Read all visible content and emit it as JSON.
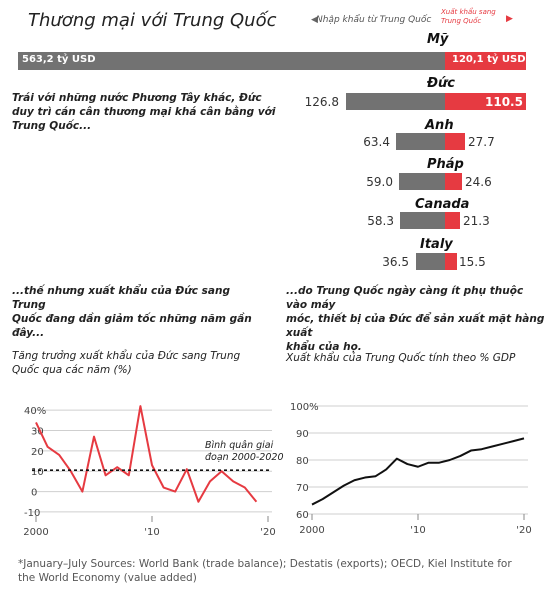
{
  "header": {
    "title": "Thương mại với Trung Quốc",
    "imports_legend": "Nhập khẩu từ Trung Quốc",
    "exports_legend_line1": "Xuất khẩu sang",
    "exports_legend_line2": "Trung Quốc",
    "colors": {
      "imports": "#727272",
      "exports": "#e63a41"
    }
  },
  "notes": {
    "trade_balance_line1": "Trái với những nước Phương Tây khác, Đức",
    "trade_balance_line2": "duy trì cán cân thương mại khá cân bằng với",
    "trade_balance_line3": "Trung Quốc...",
    "exports_line1": "...thế nhưng xuất khẩu của Đức sang Trung",
    "exports_line2": "Quốc đang dần giảm tốc những năm gần",
    "exports_line3": "đây...",
    "dependence_line1": "...do Trung Quốc ngày càng ít phụ thuộc vào máy",
    "dependence_line2": "móc, thiết bị của Đức để sản xuất mặt hàng xuất",
    "dependence_line3": "khẩu của họ."
  },
  "footer": {
    "source_line1": "*January–July   Sources: World Bank (trade balance); Destatis (exports); OECD, Kiel Institute for",
    "source_line2": "the World Economy (value added)"
  },
  "chart_data": [
    {
      "type": "bar",
      "title": "",
      "categories": [
        "Mỹ",
        "Đức",
        "Anh",
        "Pháp",
        "Canada",
        "Italy"
      ],
      "series": [
        {
          "name": "Nhập khẩu từ Trung Quốc",
          "values": [
            563.2,
            126.8,
            63.4,
            59.0,
            58.3,
            36.5
          ]
        },
        {
          "name": "Xuất khẩu sang Trung Quốc",
          "values": [
            120.1,
            110.5,
            27.7,
            24.6,
            21.3,
            15.5
          ]
        }
      ],
      "value_labels_imports": [
        "563,2 tỷ USD",
        "126.8",
        "63.4",
        "59.0",
        "58.3",
        "36.5"
      ],
      "value_labels_exports": [
        "120,1 tỷ USD",
        "110.5",
        "27.7",
        "24.6",
        "21.3",
        "15.5"
      ],
      "unit": "tỷ USD"
    },
    {
      "type": "line",
      "title": "Tăng trưởng xuất khẩu của Đức sang Trung Quốc qua các năm (%)",
      "x": [
        2000,
        2001,
        2002,
        2003,
        2004,
        2005,
        2006,
        2007,
        2008,
        2009,
        2010,
        2011,
        2012,
        2013,
        2014,
        2015,
        2016,
        2017,
        2018,
        2019,
        2020
      ],
      "y": [
        34,
        22,
        18,
        10,
        0,
        27,
        8,
        12,
        8,
        42,
        13,
        2,
        0,
        11,
        -5,
        5,
        10,
        5,
        2,
        -5,
        null
      ],
      "average": 10.5,
      "average_label_line1": "Bình quân giai",
      "average_label_line2": "đoạn 2000-2020",
      "yticks": [
        40,
        30,
        20,
        10,
        0,
        -10
      ],
      "ytick_labels": [
        "40%",
        "30",
        "20",
        "10",
        "0",
        "-10"
      ],
      "xtick_labels": [
        "2000",
        "'10",
        "'20"
      ],
      "ylim": [
        -12,
        45
      ],
      "color": "#e63a41"
    },
    {
      "type": "line",
      "title": "Xuất khẩu của Trung Quốc tính theo % GDP",
      "x": [
        2000,
        2001,
        2002,
        2003,
        2004,
        2005,
        2006,
        2007,
        2008,
        2009,
        2010,
        2011,
        2012,
        2013,
        2014,
        2015,
        2016,
        2017,
        2018,
        2019,
        2020
      ],
      "y": [
        63.5,
        65.5,
        68,
        70.5,
        72.5,
        73.5,
        74,
        76.5,
        80.5,
        78.5,
        77.5,
        79,
        79,
        80,
        81.5,
        83.5,
        84,
        85,
        86,
        87,
        88
      ],
      "yticks": [
        100,
        90,
        80,
        70,
        60
      ],
      "ytick_labels": [
        "100%",
        "90",
        "80",
        "70",
        "60"
      ],
      "xtick_labels": [
        "2000",
        "'10",
        "'20"
      ],
      "ylim": [
        60,
        100
      ],
      "color": "#111111"
    }
  ]
}
